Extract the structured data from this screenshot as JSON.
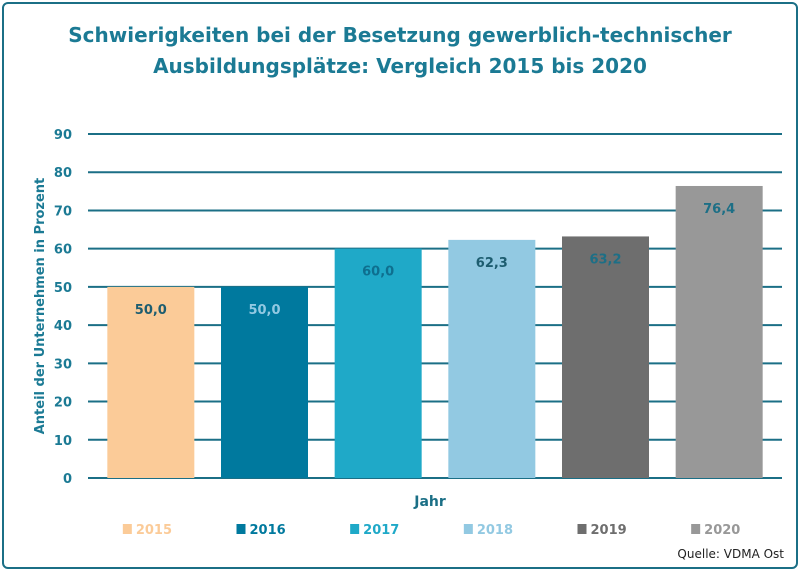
{
  "chart_data": {
    "type": "bar",
    "title": "Schwierigkeiten bei der Besetzung gewerblich-technischer",
    "title_line2": "Ausbildungsplätze: Vergleich 2015 bis 2020",
    "xlabel": "Jahr",
    "ylabel": "Anteil der Unternehmen in Prozent",
    "ylim": [
      0,
      90
    ],
    "yticks": [
      "0",
      "10",
      "20",
      "30",
      "40",
      "50",
      "60",
      "70",
      "80",
      "90"
    ],
    "grid": true,
    "legend_position": "bottom",
    "categories": [
      "2015",
      "2016",
      "2017",
      "2018",
      "2019",
      "2020"
    ],
    "values": [
      50.0,
      50.0,
      60.0,
      62.3,
      63.2,
      76.4
    ],
    "data_labels": [
      "50,0",
      "50,0",
      "60,0",
      "62,3",
      "63,2",
      "76,4"
    ],
    "colors": [
      "#FBCB98",
      "#00799E",
      "#1FA9C8",
      "#92C9E2",
      "#6E6E6E",
      "#989898"
    ],
    "label_colors": [
      "#1d5d70",
      "#92C9E2",
      "#0e6f8f",
      "#1d5d70",
      "#1d6f86",
      "#1d6f86"
    ],
    "source": "Quelle: VDMA Ost",
    "accent_color": "#1b7a94"
  }
}
